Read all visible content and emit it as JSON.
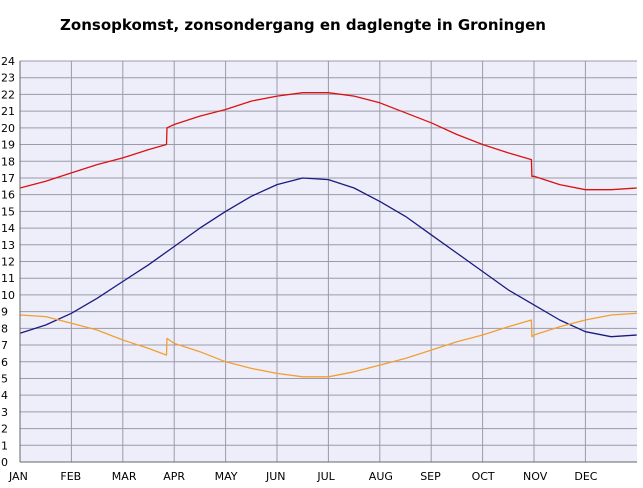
{
  "chart_data": {
    "type": "line",
    "title": "Zonsopkomst, zonsondergang en daglengte in Groningen",
    "xlabel": "",
    "ylabel": "",
    "ylim": [
      0,
      24
    ],
    "y_ticks": [
      0,
      1,
      2,
      3,
      4,
      5,
      6,
      7,
      8,
      9,
      10,
      11,
      12,
      13,
      14,
      15,
      16,
      17,
      18,
      19,
      20,
      21,
      22,
      23,
      24
    ],
    "x_ticks": [
      "JAN",
      "FEB",
      "MAR",
      "APR",
      "MAY",
      "JUN",
      "JUL",
      "AUG",
      "SEP",
      "OCT",
      "NOV",
      "DEC"
    ],
    "xlim": [
      0,
      12
    ],
    "grid": true,
    "legend": "none",
    "colors": {
      "plot_background": "#eeeefa",
      "grid": "#9a9aaa",
      "sunset": "#dd1111",
      "daylength": "#1a1a80",
      "sunrise": "#f0a030"
    },
    "series": [
      {
        "color": "#dd1111",
        "x": [
          0,
          0.5,
          1,
          1.5,
          2,
          2.5,
          2.85,
          2.86,
          3,
          3.5,
          4,
          4.5,
          5,
          5.5,
          6,
          6.5,
          7,
          7.5,
          8,
          8.5,
          9,
          9.5,
          9.95,
          9.96,
          10,
          10.5,
          11,
          11.5,
          12
        ],
        "values": [
          16.4,
          16.8,
          17.3,
          17.8,
          18.2,
          18.7,
          19.0,
          20.0,
          20.2,
          20.7,
          21.1,
          21.6,
          21.9,
          22.1,
          22.1,
          21.9,
          21.5,
          20.9,
          20.3,
          19.6,
          19.0,
          18.5,
          18.1,
          17.1,
          17.1,
          16.6,
          16.3,
          16.3,
          16.4
        ]
      },
      {
        "color": "#1a1a80",
        "x": [
          0,
          0.5,
          1,
          1.5,
          2,
          2.5,
          3,
          3.5,
          4,
          4.5,
          5,
          5.5,
          6,
          6.5,
          7,
          7.5,
          8,
          8.5,
          9,
          9.5,
          10,
          10.5,
          11,
          11.5,
          12
        ],
        "values": [
          7.7,
          8.2,
          8.9,
          9.8,
          10.8,
          11.8,
          12.9,
          14.0,
          15.0,
          15.9,
          16.6,
          17.0,
          16.9,
          16.4,
          15.6,
          14.7,
          13.6,
          12.5,
          11.4,
          10.3,
          9.4,
          8.5,
          7.8,
          7.5,
          7.6
        ]
      },
      {
        "color": "#f0a030",
        "x": [
          0,
          0.5,
          1,
          1.5,
          2,
          2.5,
          2.85,
          2.86,
          3,
          3.5,
          4,
          4.5,
          5,
          5.5,
          6,
          6.5,
          7,
          7.5,
          8,
          8.5,
          9,
          9.5,
          9.95,
          9.96,
          10,
          10.5,
          11,
          11.5,
          12
        ],
        "values": [
          8.8,
          8.7,
          8.3,
          7.9,
          7.3,
          6.8,
          6.4,
          7.4,
          7.1,
          6.6,
          6.0,
          5.6,
          5.3,
          5.1,
          5.1,
          5.4,
          5.8,
          6.2,
          6.7,
          7.2,
          7.6,
          8.1,
          8.5,
          7.5,
          7.6,
          8.1,
          8.5,
          8.8,
          8.9
        ]
      }
    ]
  }
}
